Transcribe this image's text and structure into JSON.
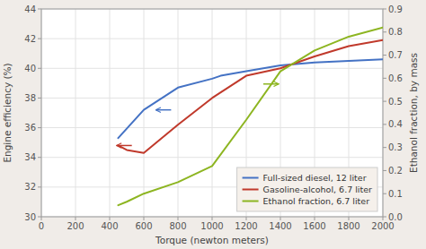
{
  "chart_data": {
    "type": "line",
    "xlabel": "Torque (newton meters)",
    "ylabel": "Engine efficiency (%)",
    "y2label": "Ethanol fraction, by mass",
    "xlim": [
      0,
      2000
    ],
    "ylim": [
      30,
      44
    ],
    "y2lim": [
      0,
      0.9
    ],
    "xticks": [
      0,
      200,
      400,
      600,
      800,
      1000,
      1200,
      1400,
      1600,
      1800,
      2000
    ],
    "yticks": [
      30,
      32,
      34,
      36,
      38,
      40,
      42,
      44
    ],
    "y2ticks": [
      {
        "value": 0,
        "label": "0.0"
      },
      0.1,
      0.2,
      0.3,
      0.4,
      0.5,
      0.6,
      0.7,
      0.8,
      0.9
    ],
    "grid": true,
    "legend": "lower right",
    "series": [
      {
        "name": "Full-sized diesel, 12 liter",
        "color": "#4472c4",
        "x": [
          450,
          600,
          800,
          1000,
          1050,
          1200,
          1400,
          1600,
          1800,
          2000
        ],
        "values": [
          35.3,
          37.2,
          38.7,
          39.3,
          39.5,
          39.8,
          40.2,
          40.4,
          40.5,
          40.6
        ]
      },
      {
        "name": "Gasoline-alcohol, 6.7 liter",
        "color": "#c0392b",
        "x": [
          450,
          500,
          600,
          800,
          1000,
          1200,
          1400,
          1600,
          1800,
          2000
        ],
        "values": [
          34.8,
          34.5,
          34.3,
          36.2,
          38.0,
          39.5,
          40.0,
          40.8,
          41.5,
          41.9
        ]
      },
      {
        "name": "Ethanol fraction, 6.7 liter",
        "color": "#8db521",
        "axis": "y2",
        "x": [
          450,
          500,
          600,
          800,
          1000,
          1200,
          1400,
          1600,
          1800,
          2000
        ],
        "values": [
          0.05,
          0.065,
          0.1,
          0.15,
          0.22,
          0.42,
          0.63,
          0.72,
          0.78,
          0.82
        ]
      }
    ],
    "annotations": [
      {
        "x": 760,
        "x_end": 670,
        "y": 37.2,
        "color": "#4472c4"
      },
      {
        "x": 530,
        "x_end": 440,
        "y": 34.8,
        "color": "#c0392b"
      },
      {
        "x": 1300,
        "x_end": 1390,
        "y": 0.575,
        "color": "#8db521",
        "axis": "y2"
      }
    ]
  }
}
